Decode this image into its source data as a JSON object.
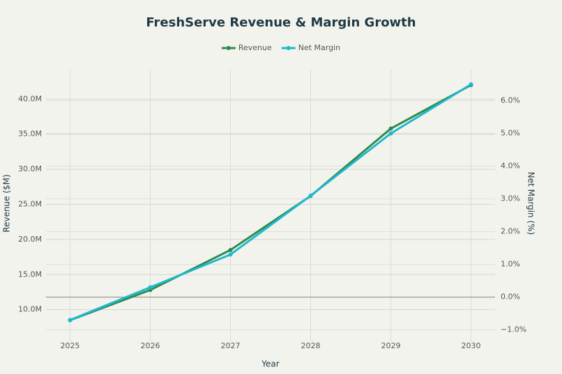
{
  "chart_data": {
    "type": "line",
    "title": "FreshServe Revenue & Margin Growth",
    "x_label": "Year",
    "y_label": "Revenue ($M)",
    "y2_label": "Net Margin (%)",
    "x": [
      2025,
      2026,
      2027,
      2028,
      2029,
      2030
    ],
    "xlim": [
      2024.7,
      2030.3
    ],
    "xticks": [
      2025,
      2026,
      2027,
      2028,
      2029,
      2030
    ],
    "ylim": [
      5.5,
      44.2
    ],
    "yticks": [
      {
        "value": 10,
        "label": "10.0M"
      },
      {
        "value": 15,
        "label": "15.0M"
      },
      {
        "value": 20,
        "label": "20.0M"
      },
      {
        "value": 25,
        "label": "25.0M"
      },
      {
        "value": 30,
        "label": "30.0M"
      },
      {
        "value": 35,
        "label": "35.0M"
      },
      {
        "value": 40,
        "label": "40.0M"
      }
    ],
    "y2lim": [
      -1.35,
      6.95
    ],
    "y2ticks": [
      {
        "value": -1,
        "label": "−1.0%"
      },
      {
        "value": 0,
        "label": "0.0%"
      },
      {
        "value": 1,
        "label": "1.0%"
      },
      {
        "value": 2,
        "label": "2.0%"
      },
      {
        "value": 3,
        "label": "3.0%"
      },
      {
        "value": 4,
        "label": "4.0%"
      },
      {
        "value": 5,
        "label": "5.0%"
      },
      {
        "value": 6,
        "label": "6.0%"
      }
    ],
    "grid": true,
    "legend": "top",
    "series": [
      {
        "name": "Revenue",
        "color": "#2e8b4f",
        "values": [
          8.5,
          12.8,
          18.5,
          26.2,
          35.8,
          42.0
        ]
      },
      {
        "name": "Net Margin",
        "color": "#1fb8cd",
        "axis": "y2",
        "values": [
          -0.7,
          0.3,
          1.3,
          3.1,
          5.0,
          6.5
        ]
      }
    ]
  }
}
